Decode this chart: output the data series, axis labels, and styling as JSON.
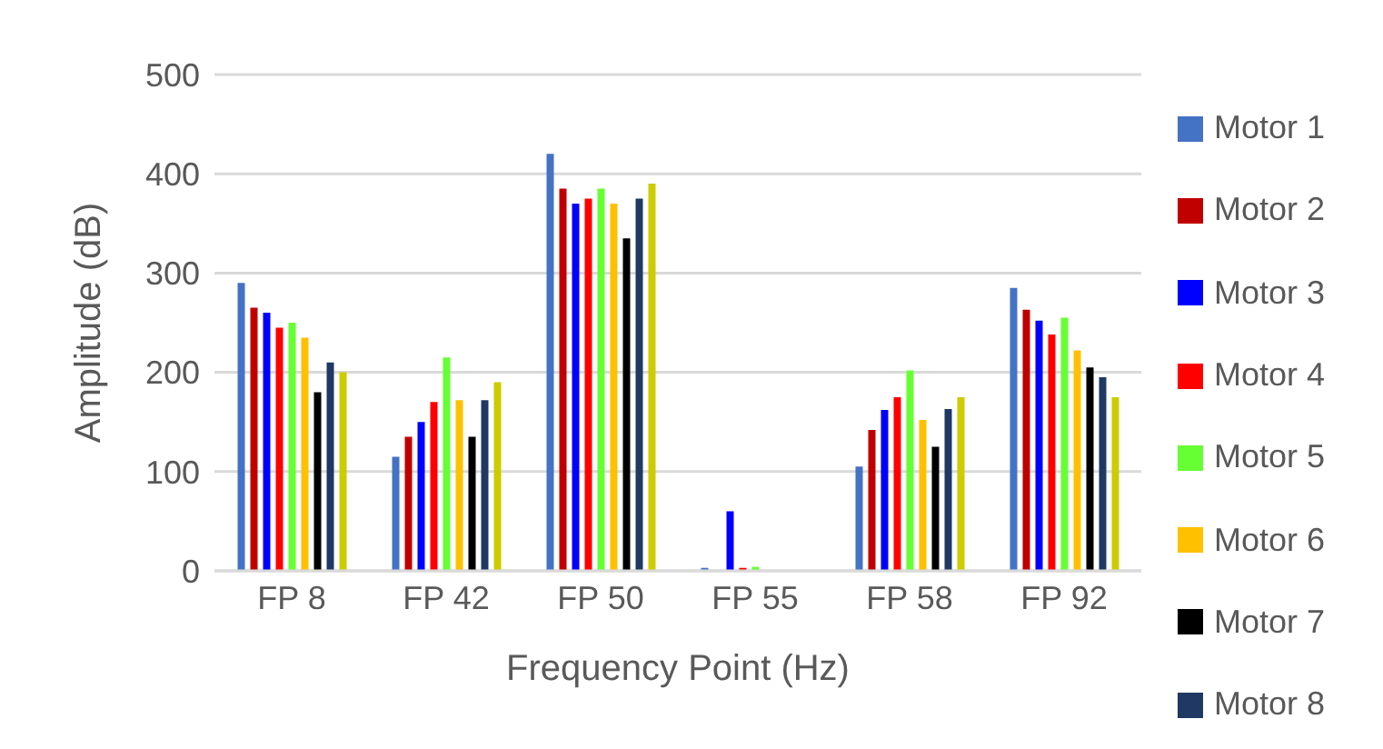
{
  "chart_data": {
    "type": "bar",
    "xlabel": "Frequency Point (Hz)",
    "ylabel": "Amplitude (dB)",
    "categories": [
      "FP 8",
      "FP 42",
      "FP 50",
      "FP 55",
      "FP 58",
      "FP 92"
    ],
    "series": [
      {
        "name": "Motor 1",
        "color": "#4472c4",
        "values": [
          290,
          115,
          420,
          3,
          105,
          285
        ]
      },
      {
        "name": "Motor 2",
        "color": "#c00000",
        "values": [
          265,
          135,
          385,
          null,
          142,
          263
        ]
      },
      {
        "name": "Motor 3",
        "color": "#0000ff",
        "values": [
          260,
          150,
          370,
          60,
          162,
          252
        ]
      },
      {
        "name": "Motor 4",
        "color": "#ff0000",
        "values": [
          245,
          170,
          375,
          3,
          175,
          238
        ]
      },
      {
        "name": "Motor 5",
        "color": "#66ff33",
        "values": [
          250,
          215,
          385,
          4,
          202,
          255
        ]
      },
      {
        "name": "Motor 6",
        "color": "#ffc000",
        "values": [
          235,
          172,
          370,
          0,
          152,
          222
        ]
      },
      {
        "name": "Motor 7",
        "color": "#000000",
        "values": [
          180,
          135,
          335,
          0,
          125,
          205
        ]
      },
      {
        "name": "Motor 8",
        "color": "#1f3864",
        "values": [
          210,
          172,
          375,
          0,
          163,
          195
        ]
      },
      {
        "color": "#cccc00",
        "values": [
          200,
          190,
          390,
          0,
          175,
          175
        ]
      }
    ],
    "ylim": [
      0,
      500
    ],
    "yticks": [
      0,
      100,
      200,
      300,
      400,
      500
    ],
    "grid": "y",
    "legend": "right"
  }
}
